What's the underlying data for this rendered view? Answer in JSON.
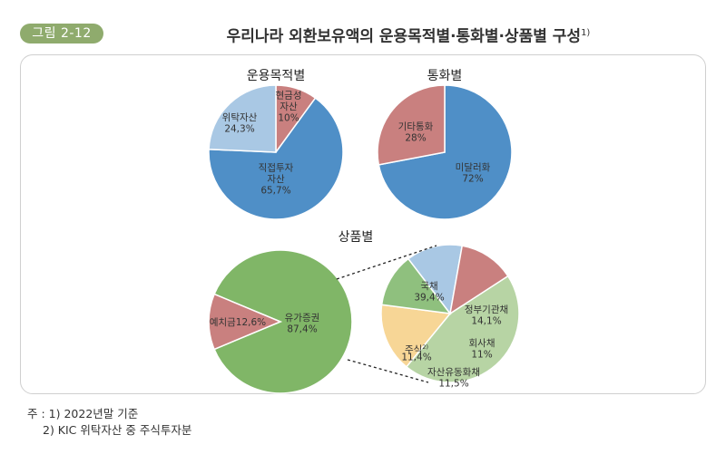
{
  "figure": {
    "label": "그림 2-12",
    "title": "우리나라 외환보유액의 운용목적별·통화별·상품별 구성",
    "title_sup": "1)"
  },
  "notes": {
    "note1": "주 : 1) 2022년말 기준",
    "note2": "2) KIC 위탁자산 중 주식투자분"
  },
  "chart_data": [
    {
      "type": "pie",
      "title": "운용목적별",
      "slices": [
        {
          "label": [
            "현금성",
            "자산"
          ],
          "value_text": "10%",
          "value": 10,
          "color": "#c9807f"
        },
        {
          "label": [
            "직접투자",
            "자산"
          ],
          "value_text": "65,7%",
          "value": 65.7,
          "color": "#4f8fc7"
        },
        {
          "label": [
            "위탁자산"
          ],
          "value_text": "24,3%",
          "value": 24.3,
          "color": "#a9c8e4"
        }
      ]
    },
    {
      "type": "pie",
      "title": "통화별",
      "slices": [
        {
          "label": [
            "미달러화"
          ],
          "value_text": "72%",
          "value": 72,
          "color": "#4f8fc7"
        },
        {
          "label": [
            "기타통화"
          ],
          "value_text": "28%",
          "value": 28,
          "color": "#c9807f"
        }
      ]
    },
    {
      "type": "pie",
      "title": "상품별",
      "slices": [
        {
          "label": [
            "유가증권"
          ],
          "value_text": "87,4%",
          "value": 87.4,
          "color": "#80b667"
        },
        {
          "label": [
            "예치금12,6%"
          ],
          "value_text": "",
          "value": 12.6,
          "color": "#c9807f"
        }
      ]
    },
    {
      "type": "pie",
      "title": "",
      "slices": [
        {
          "label": [
            "국채"
          ],
          "value_text": "39,4%",
          "value": 39.4,
          "color": "#b7d4a4"
        },
        {
          "label": [
            "정부기관채"
          ],
          "value_text": "14,1%",
          "value": 14.1,
          "color": "#f7d696"
        },
        {
          "label": [
            "회사채"
          ],
          "value_text": "11%",
          "value": 11,
          "color": "#8fc07e"
        },
        {
          "label": [
            "자산유동화채"
          ],
          "value_text": "11,5%",
          "value": 11.5,
          "color": "#a9c8e4"
        },
        {
          "label": [
            "주식"
          ],
          "label_sup": "2)",
          "value_text": "11,4%",
          "value": 11.4,
          "color": "#c9807f"
        }
      ]
    }
  ]
}
